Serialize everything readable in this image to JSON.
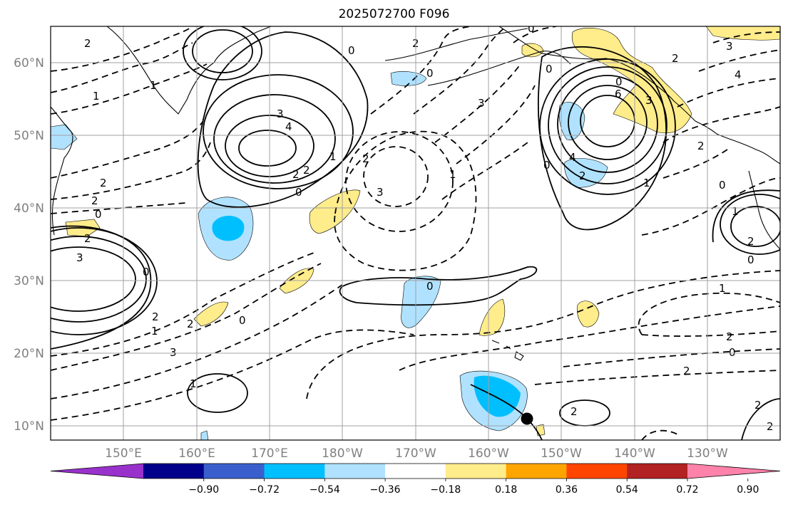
{
  "title": "2025072700 F096",
  "lat_labels": [
    "60°N",
    "50°N",
    "40°N",
    "30°N",
    "20°N",
    "10°N"
  ],
  "lon_labels": [
    "150°E",
    "160°E",
    "170°E",
    "180°W",
    "170°W",
    "160°W",
    "150°W",
    "140°W",
    "130°W"
  ],
  "colorbar": {
    "colors": [
      "#9932CC",
      "#00008B",
      "#3A5FCD",
      "#00BFFF",
      "#B0E2FF",
      "#FFFFFF",
      "#FFEC8B",
      "#FFA500",
      "#FF4500",
      "#B22222",
      "#FF82AB"
    ],
    "tick_labels": [
      "−0.90",
      "−0.72",
      "−0.54",
      "−0.36",
      "−0.18",
      "0.18",
      "0.36",
      "0.54",
      "0.72",
      "0.90"
    ]
  },
  "contour_labels": [
    "2",
    "1",
    "3",
    "4",
    "2",
    "1",
    "2",
    "0",
    "2",
    "3",
    "0",
    "0",
    "2",
    "2",
    "1",
    "0",
    "3",
    "2",
    "0",
    "2",
    "3",
    "6",
    "3",
    "4",
    "2",
    "0",
    "1",
    "2",
    "3",
    "4",
    "2",
    "0",
    "1",
    "2",
    "0",
    "0",
    "3",
    "2",
    "2",
    "1",
    "2",
    "0",
    "2",
    "1",
    "2",
    "2",
    "2",
    "1",
    "0",
    "0",
    "0",
    "0",
    "1"
  ],
  "marker": "storm-position"
}
